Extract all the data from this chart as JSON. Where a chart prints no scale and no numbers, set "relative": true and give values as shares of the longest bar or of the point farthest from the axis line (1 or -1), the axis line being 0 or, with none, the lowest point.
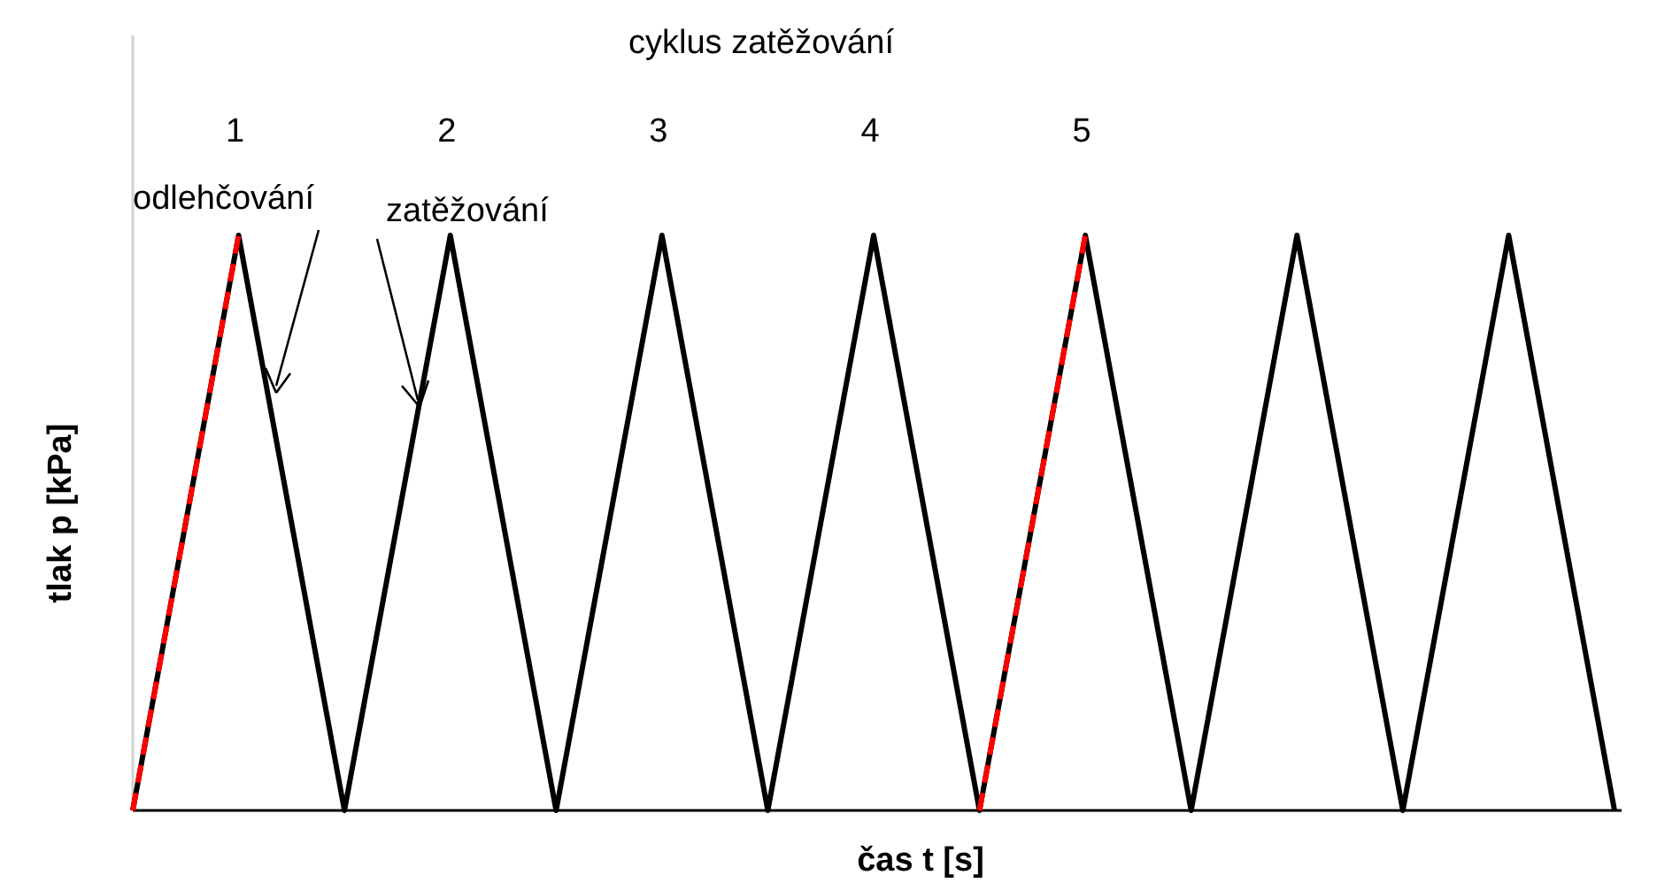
{
  "chart_data": {
    "type": "line",
    "relative": true,
    "title": "cyklus zatěžování",
    "xlabel": "čas t [s]",
    "ylabel": "tlak p [kPa]",
    "categories": [
      null,
      null,
      null,
      null,
      null,
      null,
      null,
      null,
      null,
      null,
      null,
      null,
      null,
      null,
      null
    ],
    "series": [
      {
        "color": "#000000",
        "line_style": "solid",
        "values": [
          0,
          1,
          0,
          1,
          0,
          1,
          0,
          1,
          0,
          1,
          0,
          1,
          0,
          1,
          0
        ]
      },
      {
        "color": "#ff0000",
        "line_style": "dashed",
        "values": [
          0,
          1,
          null,
          null,
          null,
          null,
          null,
          null,
          0,
          1,
          null,
          null,
          null,
          null,
          null
        ]
      }
    ],
    "annotations": [
      "1",
      "2",
      "3",
      "4",
      "5",
      "odlehčování",
      "zatěžování"
    ],
    "marker": "none"
  }
}
